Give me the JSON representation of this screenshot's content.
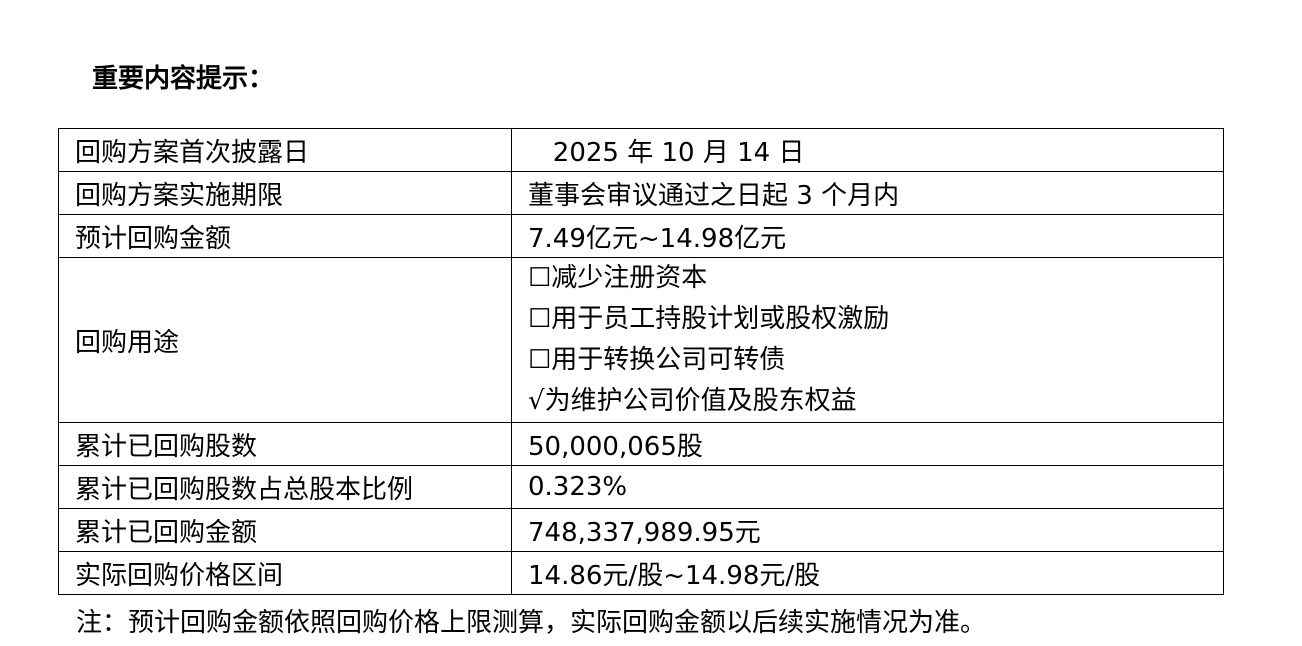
{
  "title": "重要内容提示：",
  "rows": [
    {
      "label": "回购方案首次披露日",
      "value": "   2025 年 10 月 14 日"
    },
    {
      "label": "回购方案实施期限",
      "value": "董事会审议通过之日起 3 个月内"
    },
    {
      "label": "预计回购金额",
      "value": "7.49亿元~14.98亿元"
    },
    {
      "label": "回购用途",
      "options": [
        "☐减少注册资本",
        "☐用于员工持股计划或股权激励",
        "☐用于转换公司可转债",
        "√为维护公司价值及股东权益"
      ]
    },
    {
      "label": "累计已回购股数",
      "value": "50,000,065股"
    },
    {
      "label": "累计已回购股数占总股本比例",
      "value": "0.323%"
    },
    {
      "label": "累计已回购金额",
      "value": "748,337,989.95元"
    },
    {
      "label": "实际回购价格区间",
      "value": "14.86元/股~14.98元/股"
    }
  ],
  "note": "注：预计回购金额依照回购价格上限测算，实际回购金额以后续实施情况为准。"
}
